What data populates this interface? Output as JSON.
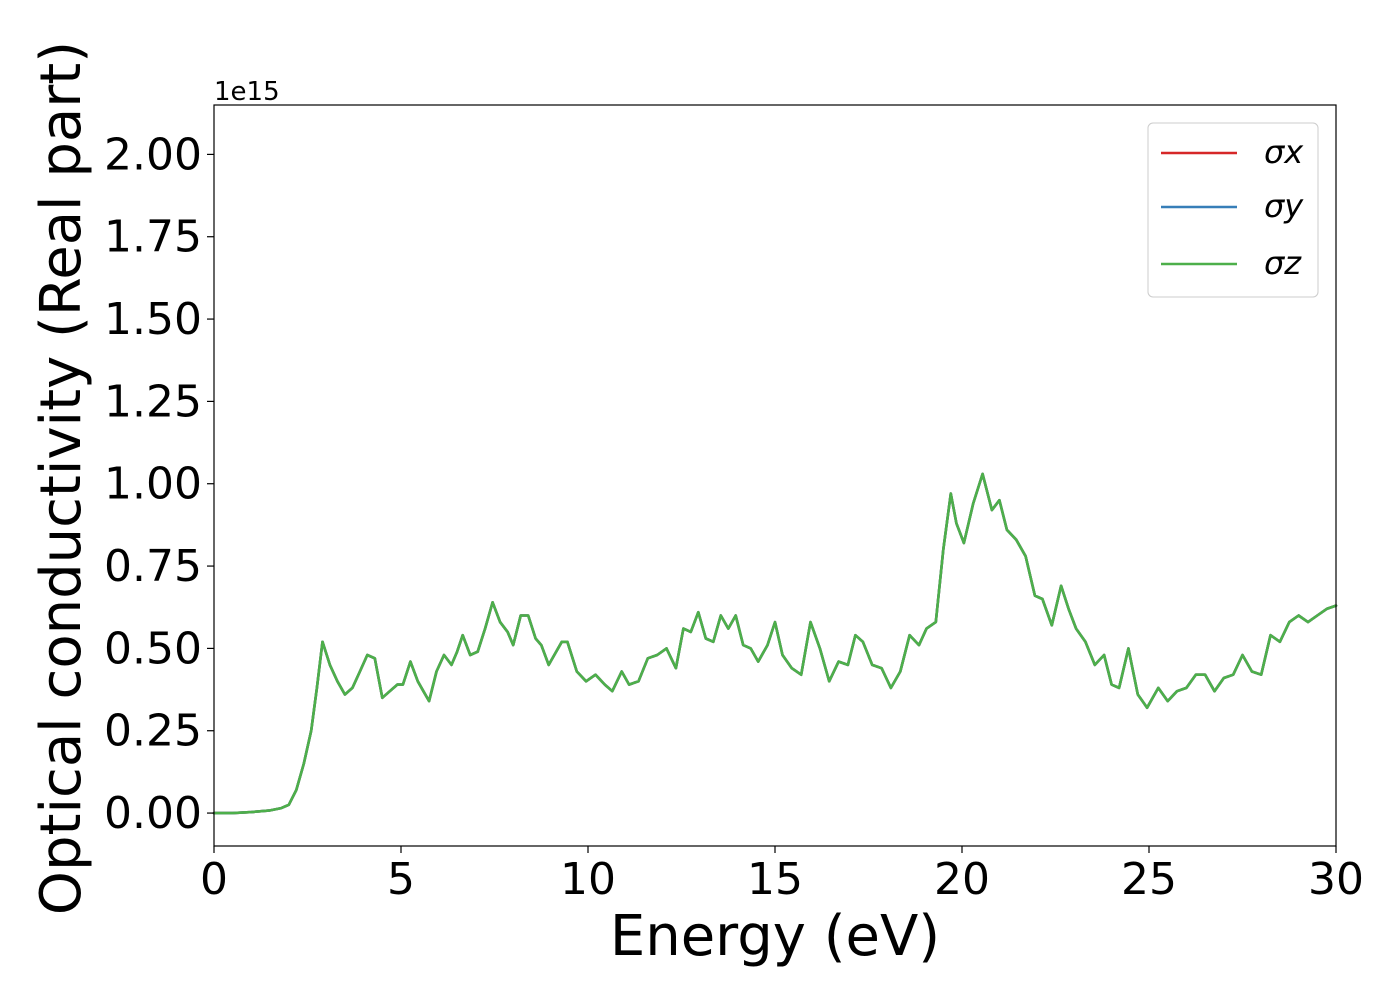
{
  "chart_data": {
    "type": "line",
    "xlabel": "Energy (eV)",
    "ylabel": "Optical conductivity (Real part)",
    "y_offset_label": "1e15",
    "xlim": [
      0,
      30
    ],
    "ylim": [
      -0.1,
      2.15
    ],
    "x_ticks": [
      0,
      5,
      10,
      15,
      20,
      25,
      30
    ],
    "x_tick_labels": [
      "0",
      "5",
      "10",
      "15",
      "20",
      "25",
      "30"
    ],
    "y_ticks": [
      0,
      0.25,
      0.5,
      0.75,
      1.0,
      1.25,
      1.5,
      1.75,
      2.0
    ],
    "y_tick_labels": [
      "0.00",
      "0.25",
      "0.50",
      "0.75",
      "1.00",
      "1.25",
      "1.50",
      "1.75",
      "2.00"
    ],
    "grid": false,
    "legend_position": "top-right",
    "x": [
      0,
      0.5,
      1.0,
      1.5,
      1.8,
      2.0,
      2.2,
      2.4,
      2.6,
      2.75,
      2.9,
      3.1,
      3.3,
      3.5,
      3.7,
      3.9,
      4.1,
      4.3,
      4.5,
      4.7,
      4.9,
      5.05,
      5.25,
      5.45,
      5.6,
      5.75,
      5.95,
      6.15,
      6.35,
      6.5,
      6.65,
      6.85,
      7.05,
      7.25,
      7.45,
      7.65,
      7.85,
      8.0,
      8.2,
      8.4,
      8.6,
      8.75,
      8.95,
      9.1,
      9.3,
      9.45,
      9.7,
      9.95,
      10.2,
      10.45,
      10.65,
      10.9,
      11.1,
      11.35,
      11.6,
      11.85,
      12.1,
      12.35,
      12.55,
      12.75,
      12.95,
      13.15,
      13.35,
      13.55,
      13.75,
      13.95,
      14.15,
      14.35,
      14.55,
      14.8,
      15.0,
      15.2,
      15.45,
      15.7,
      15.95,
      16.2,
      16.45,
      16.7,
      16.95,
      17.15,
      17.35,
      17.6,
      17.85,
      18.1,
      18.35,
      18.6,
      18.85,
      19.05,
      19.3,
      19.5,
      19.7,
      19.85,
      20.05,
      20.3,
      20.55,
      20.8,
      21.0,
      21.2,
      21.45,
      21.7,
      21.95,
      22.15,
      22.4,
      22.65,
      22.85,
      23.05,
      23.3,
      23.55,
      23.8,
      24.0,
      24.2,
      24.45,
      24.7,
      24.95,
      25.25,
      25.5,
      25.75,
      26.0,
      26.25,
      26.5,
      26.75,
      27.0,
      27.25,
      27.5,
      27.75,
      28.0,
      28.25,
      28.5,
      28.75,
      29.0,
      29.25,
      29.5,
      29.75,
      30.0
    ],
    "series": [
      {
        "name": "σx",
        "color": "#d62728",
        "values": [
          0.0,
          0.0,
          0.003,
          0.008,
          0.015,
          0.025,
          0.07,
          0.15,
          0.25,
          0.38,
          0.52,
          0.45,
          0.4,
          0.36,
          0.38,
          0.43,
          0.48,
          0.47,
          0.35,
          0.37,
          0.39,
          0.39,
          0.46,
          0.4,
          0.37,
          0.34,
          0.43,
          0.48,
          0.45,
          0.49,
          0.54,
          0.48,
          0.49,
          0.56,
          0.64,
          0.58,
          0.55,
          0.51,
          0.6,
          0.6,
          0.53,
          0.51,
          0.45,
          0.48,
          0.52,
          0.52,
          0.43,
          0.4,
          0.42,
          0.39,
          0.37,
          0.43,
          0.39,
          0.4,
          0.47,
          0.48,
          0.5,
          0.44,
          0.56,
          0.55,
          0.61,
          0.53,
          0.52,
          0.6,
          0.56,
          0.6,
          0.51,
          0.5,
          0.46,
          0.51,
          0.58,
          0.48,
          0.44,
          0.42,
          0.58,
          0.5,
          0.4,
          0.46,
          0.45,
          0.54,
          0.52,
          0.45,
          0.44,
          0.38,
          0.43,
          0.54,
          0.51,
          0.56,
          0.58,
          0.8,
          0.97,
          0.88,
          0.82,
          0.94,
          1.03,
          0.92,
          0.95,
          0.86,
          0.83,
          0.78,
          0.66,
          0.65,
          0.57,
          0.69,
          0.62,
          0.56,
          0.52,
          0.45,
          0.48,
          0.39,
          0.38,
          0.5,
          0.36,
          0.32,
          0.38,
          0.34,
          0.37,
          0.38,
          0.42,
          0.42,
          0.37,
          0.41,
          0.42,
          0.48,
          0.43,
          0.42,
          0.54,
          0.52,
          0.58,
          0.6,
          0.58,
          0.6,
          0.62,
          0.63
        ]
      },
      {
        "name": "σy",
        "color": "#377eb8",
        "values": [
          0.0,
          0.0,
          0.003,
          0.008,
          0.015,
          0.025,
          0.07,
          0.15,
          0.25,
          0.38,
          0.52,
          0.45,
          0.4,
          0.36,
          0.38,
          0.43,
          0.48,
          0.47,
          0.35,
          0.37,
          0.39,
          0.39,
          0.46,
          0.4,
          0.37,
          0.34,
          0.43,
          0.48,
          0.45,
          0.49,
          0.54,
          0.48,
          0.49,
          0.56,
          0.64,
          0.58,
          0.55,
          0.51,
          0.6,
          0.6,
          0.53,
          0.51,
          0.45,
          0.48,
          0.52,
          0.52,
          0.43,
          0.4,
          0.42,
          0.39,
          0.37,
          0.43,
          0.39,
          0.4,
          0.47,
          0.48,
          0.5,
          0.44,
          0.56,
          0.55,
          0.61,
          0.53,
          0.52,
          0.6,
          0.56,
          0.6,
          0.51,
          0.5,
          0.46,
          0.51,
          0.58,
          0.48,
          0.44,
          0.42,
          0.58,
          0.5,
          0.4,
          0.46,
          0.45,
          0.54,
          0.52,
          0.45,
          0.44,
          0.38,
          0.43,
          0.54,
          0.51,
          0.56,
          0.58,
          0.8,
          0.97,
          0.88,
          0.82,
          0.94,
          1.03,
          0.92,
          0.95,
          0.86,
          0.83,
          0.78,
          0.66,
          0.65,
          0.57,
          0.69,
          0.62,
          0.56,
          0.52,
          0.45,
          0.48,
          0.39,
          0.38,
          0.5,
          0.36,
          0.32,
          0.38,
          0.34,
          0.37,
          0.38,
          0.42,
          0.42,
          0.37,
          0.41,
          0.42,
          0.48,
          0.43,
          0.42,
          0.54,
          0.52,
          0.58,
          0.6,
          0.58,
          0.6,
          0.62,
          0.63
        ]
      },
      {
        "name": "σz",
        "color": "#4daf4a",
        "values": [
          0.0,
          0.0,
          0.003,
          0.008,
          0.015,
          0.025,
          0.07,
          0.15,
          0.25,
          0.38,
          0.52,
          0.45,
          0.4,
          0.36,
          0.38,
          0.43,
          0.48,
          0.47,
          0.35,
          0.37,
          0.39,
          0.39,
          0.46,
          0.4,
          0.37,
          0.34,
          0.43,
          0.48,
          0.45,
          0.49,
          0.54,
          0.48,
          0.49,
          0.56,
          0.64,
          0.58,
          0.55,
          0.51,
          0.6,
          0.6,
          0.53,
          0.51,
          0.45,
          0.48,
          0.52,
          0.52,
          0.43,
          0.4,
          0.42,
          0.39,
          0.37,
          0.43,
          0.39,
          0.4,
          0.47,
          0.48,
          0.5,
          0.44,
          0.56,
          0.55,
          0.61,
          0.53,
          0.52,
          0.6,
          0.56,
          0.6,
          0.51,
          0.5,
          0.46,
          0.51,
          0.58,
          0.48,
          0.44,
          0.42,
          0.58,
          0.5,
          0.4,
          0.46,
          0.45,
          0.54,
          0.52,
          0.45,
          0.44,
          0.38,
          0.43,
          0.54,
          0.51,
          0.56,
          0.58,
          0.8,
          0.97,
          0.88,
          0.82,
          0.94,
          1.03,
          0.92,
          0.95,
          0.86,
          0.83,
          0.78,
          0.66,
          0.65,
          0.57,
          0.69,
          0.62,
          0.56,
          0.52,
          0.45,
          0.48,
          0.39,
          0.38,
          0.5,
          0.36,
          0.32,
          0.38,
          0.34,
          0.37,
          0.38,
          0.42,
          0.42,
          0.37,
          0.41,
          0.42,
          0.48,
          0.43,
          0.42,
          0.54,
          0.52,
          0.58,
          0.6,
          0.58,
          0.6,
          0.62,
          0.63
        ]
      }
    ]
  }
}
